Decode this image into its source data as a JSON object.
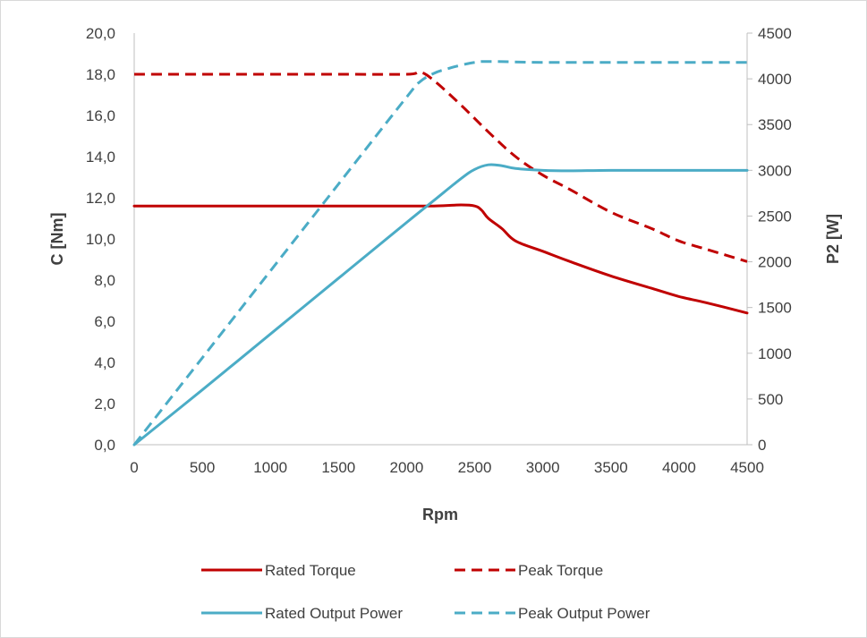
{
  "chart_data": {
    "type": "line",
    "title": "",
    "xlabel": "Rpm",
    "ylabel_left": "C [Nm]",
    "ylabel_right": "P2 [W]",
    "xlim": [
      0,
      4500
    ],
    "ylim_left": [
      0,
      20
    ],
    "ylim_right": [
      0,
      4500
    ],
    "x_ticks": [
      "0",
      "500",
      "1000",
      "1500",
      "2000",
      "2500",
      "3000",
      "3500",
      "4000",
      "4500"
    ],
    "y_left_ticks": [
      "0,0",
      "2,0",
      "4,0",
      "6,0",
      "8,0",
      "10,0",
      "12,0",
      "14,0",
      "16,0",
      "18,0",
      "20,0"
    ],
    "y_right_ticks": [
      "0",
      "500",
      "1000",
      "1500",
      "2000",
      "2500",
      "3000",
      "3500",
      "4000",
      "4500"
    ],
    "grid": false,
    "legend_position": "bottom",
    "series": [
      {
        "name": "Rated Torque",
        "axis": "left",
        "color": "#C00000",
        "dash": "solid",
        "x": [
          0,
          500,
          1000,
          1500,
          2000,
          2200,
          2400,
          2500,
          2550,
          2600,
          2700,
          2800,
          3000,
          3200,
          3500,
          3800,
          4000,
          4200,
          4500
        ],
        "y": [
          11.6,
          11.6,
          11.6,
          11.6,
          11.6,
          11.6,
          11.65,
          11.6,
          11.4,
          11.0,
          10.5,
          9.9,
          9.4,
          8.9,
          8.2,
          7.6,
          7.2,
          6.9,
          6.4
        ]
      },
      {
        "name": "Peak Torque",
        "axis": "left",
        "color": "#C00000",
        "dash": "dashed",
        "x": [
          0,
          500,
          1000,
          1500,
          2000,
          2100,
          2200,
          2400,
          2600,
          2800,
          3000,
          3200,
          3500,
          3800,
          4000,
          4200,
          4500
        ],
        "y": [
          18.0,
          18.0,
          18.0,
          18.0,
          18.0,
          18.1,
          17.7,
          16.5,
          15.2,
          14.0,
          13.1,
          12.4,
          11.3,
          10.5,
          9.9,
          9.5,
          8.9
        ]
      },
      {
        "name": "Rated Output Power",
        "axis": "right",
        "color": "#4BACC6",
        "dash": "solid",
        "x": [
          0,
          500,
          1000,
          1500,
          2000,
          2200,
          2400,
          2500,
          2600,
          2700,
          2800,
          3000,
          3200,
          3500,
          4000,
          4500
        ],
        "y": [
          0,
          600,
          1210,
          1820,
          2430,
          2670,
          2910,
          3010,
          3060,
          3050,
          3020,
          3000,
          2995,
          3000,
          3000,
          3000
        ]
      },
      {
        "name": "Peak Output Power",
        "axis": "right",
        "color": "#4BACC6",
        "dash": "dashed",
        "x": [
          0,
          500,
          1000,
          1500,
          2000,
          2100,
          2200,
          2300,
          2400,
          2500,
          2600,
          3000,
          3500,
          4000,
          4500
        ],
        "y": [
          0,
          950,
          1900,
          2850,
          3800,
          3970,
          4060,
          4110,
          4150,
          4180,
          4190,
          4180,
          4180,
          4180,
          4180
        ]
      }
    ]
  }
}
